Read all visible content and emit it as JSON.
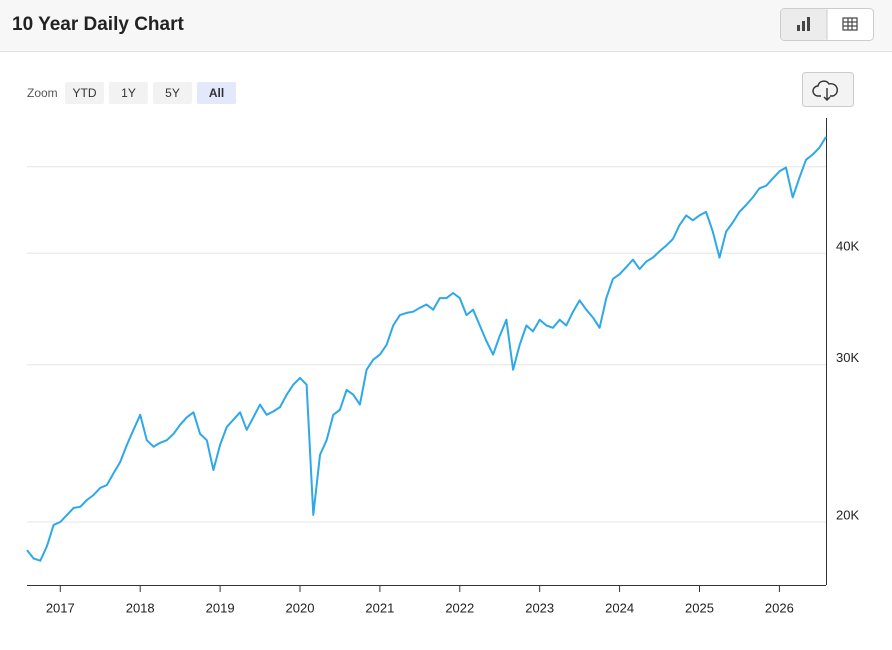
{
  "header": {
    "title": "10 Year Daily Chart"
  },
  "toolbar": {
    "zoom_label": "Zoom",
    "buttons": [
      "YTD",
      "1Y",
      "5Y",
      "All"
    ]
  },
  "chart_data": {
    "type": "line",
    "log_scale": true,
    "grid": true,
    "axis_side": "right",
    "x": [
      "2016-08",
      "2016-09",
      "2016-10",
      "2016-11",
      "2016-12",
      "2017-01",
      "2017-02",
      "2017-03",
      "2017-04",
      "2017-05",
      "2017-06",
      "2017-07",
      "2017-08",
      "2017-09",
      "2017-10",
      "2017-11",
      "2017-12",
      "2018-01",
      "2018-02",
      "2018-03",
      "2018-04",
      "2018-05",
      "2018-06",
      "2018-07",
      "2018-08",
      "2018-09",
      "2018-10",
      "2018-11",
      "2018-12",
      "2019-01",
      "2019-02",
      "2019-03",
      "2019-04",
      "2019-05",
      "2019-06",
      "2019-07",
      "2019-08",
      "2019-09",
      "2019-10",
      "2019-11",
      "2019-12",
      "2020-01",
      "2020-02",
      "2020-03",
      "2020-04",
      "2020-05",
      "2020-06",
      "2020-07",
      "2020-08",
      "2020-09",
      "2020-10",
      "2020-11",
      "2020-12",
      "2021-01",
      "2021-02",
      "2021-03",
      "2021-04",
      "2021-05",
      "2021-06",
      "2021-07",
      "2021-08",
      "2021-09",
      "2021-10",
      "2021-11",
      "2021-12",
      "2022-01",
      "2022-02",
      "2022-03",
      "2022-04",
      "2022-05",
      "2022-06",
      "2022-07",
      "2022-08",
      "2022-09",
      "2022-10",
      "2022-11",
      "2022-12",
      "2023-01",
      "2023-02",
      "2023-03",
      "2023-04",
      "2023-05",
      "2023-06",
      "2023-07",
      "2023-08",
      "2023-09",
      "2023-10",
      "2023-11",
      "2023-12",
      "2024-01",
      "2024-02",
      "2024-03",
      "2024-04",
      "2024-05",
      "2024-06",
      "2024-07",
      "2024-08",
      "2024-09",
      "2024-10",
      "2024-11",
      "2024-12",
      "2025-01",
      "2025-02",
      "2025-03",
      "2025-04",
      "2025-05",
      "2025-06",
      "2025-07",
      "2025-08",
      "2025-09",
      "2025-10",
      "2025-11",
      "2025-12",
      "2026-01",
      "2026-02",
      "2026-03",
      "2026-04",
      "2026-05",
      "2026-06",
      "2026-07",
      "2026-08"
    ],
    "series": [
      {
        "color": "#2ea8e8",
        "values": [
          18600,
          18200,
          18100,
          18800,
          19850,
          20000,
          20370,
          20740,
          20800,
          21170,
          21440,
          21840,
          22000,
          22690,
          23350,
          24400,
          25370,
          26370,
          24700,
          24290,
          24530,
          24700,
          25100,
          25700,
          26200,
          26540,
          25100,
          24700,
          22870,
          24400,
          25560,
          26040,
          26540,
          25370,
          26200,
          27070,
          26370,
          26600,
          26900,
          27770,
          28500,
          29000,
          28500,
          20370,
          23780,
          24700,
          26370,
          26710,
          28120,
          27770,
          27070,
          29620,
          30400,
          30800,
          31590,
          33200,
          34100,
          34300,
          34400,
          34750,
          35050,
          34580,
          35630,
          35630,
          36100,
          35630,
          34100,
          34580,
          33200,
          31900,
          30800,
          32310,
          33700,
          29620,
          31590,
          33200,
          32700,
          33700,
          33200,
          33000,
          33700,
          33200,
          34400,
          35420,
          34580,
          33880,
          33000,
          35630,
          37440,
          37900,
          38600,
          39350,
          38400,
          39150,
          39560,
          40200,
          40800,
          41500,
          43000,
          44100,
          43550,
          44100,
          44500,
          42300,
          39560,
          42300,
          43300,
          44500,
          45300,
          46200,
          47300,
          47600,
          48500,
          49400,
          49900,
          46200,
          48600,
          50900,
          51600,
          52500,
          54000
        ]
      }
    ],
    "xlim": [
      "2016-08",
      "2026-08"
    ],
    "xticks": [
      2017,
      2018,
      2019,
      2020,
      2021,
      2022,
      2023,
      2024,
      2025,
      2026
    ],
    "ylim": [
      17000,
      56700
    ],
    "yticks": [
      {
        "value": 20000,
        "label": "20K"
      },
      {
        "value": 30000,
        "label": "30K"
      },
      {
        "value": 40000,
        "label": "40K"
      }
    ],
    "ygrid_extra": [
      50000
    ]
  }
}
